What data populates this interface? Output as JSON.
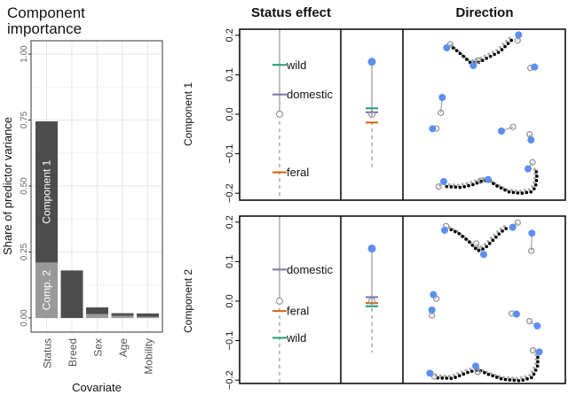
{
  "chart_data": [
    {
      "type": "bar",
      "stacked": true,
      "title": "Component importance",
      "xlabel": "Covariate",
      "ylabel": "Share of predictor variance",
      "ylim": [
        0,
        1
      ],
      "yticks": [
        "0.00",
        "0.25",
        "0.50",
        "0.75",
        "1.00"
      ],
      "grid": true,
      "categories": [
        "Status",
        "Breed",
        "Sex",
        "Age",
        "Mobility"
      ],
      "series": [
        {
          "name": "Comp. 2",
          "values": [
            0.21,
            0.0,
            0.015,
            0.008,
            0.005
          ],
          "color": "#999999"
        },
        {
          "name": "Component 1",
          "values": [
            0.535,
            0.18,
            0.025,
            0.01,
            0.012
          ],
          "color": "#4d4d4d"
        }
      ]
    },
    {
      "type": "line",
      "title": "Status effect",
      "ylim": [
        -0.2,
        0.2
      ],
      "yticks": [
        "0.2",
        "0.1",
        "0.0",
        "−0.1",
        "−0.2"
      ],
      "colors": {
        "wild": "#1b9e77",
        "domestic": "#7570b3",
        "feral": "#d95f02",
        "point": "#5b8ff0",
        "reference": "#aaaaaa"
      },
      "rows": [
        {
          "label": "Component 1",
          "levels": [
            {
              "name": "wild",
              "value": 0.125
            },
            {
              "name": "domestic",
              "value": 0.05
            },
            {
              "name": "feral",
              "value": -0.147
            }
          ],
          "range_top": 0.2,
          "range_bottom": -0.2,
          "second": {
            "point": 0.133,
            "wild": 0.015,
            "domestic": 0.005,
            "feral": -0.021,
            "range_bottom": -0.135
          }
        },
        {
          "label": "Component 2",
          "levels": [
            {
              "name": "domestic",
              "value": 0.08
            },
            {
              "name": "feral",
              "value": -0.025
            },
            {
              "name": "wild",
              "value": -0.093
            }
          ],
          "range_top": 0.2,
          "range_bottom": -0.2,
          "second": {
            "point": 0.133,
            "wild": -0.013,
            "domestic": 0.01,
            "feral": -0.005,
            "range_bottom": -0.13
          }
        }
      ]
    },
    {
      "type": "scatter",
      "title": "Direction"
    }
  ]
}
